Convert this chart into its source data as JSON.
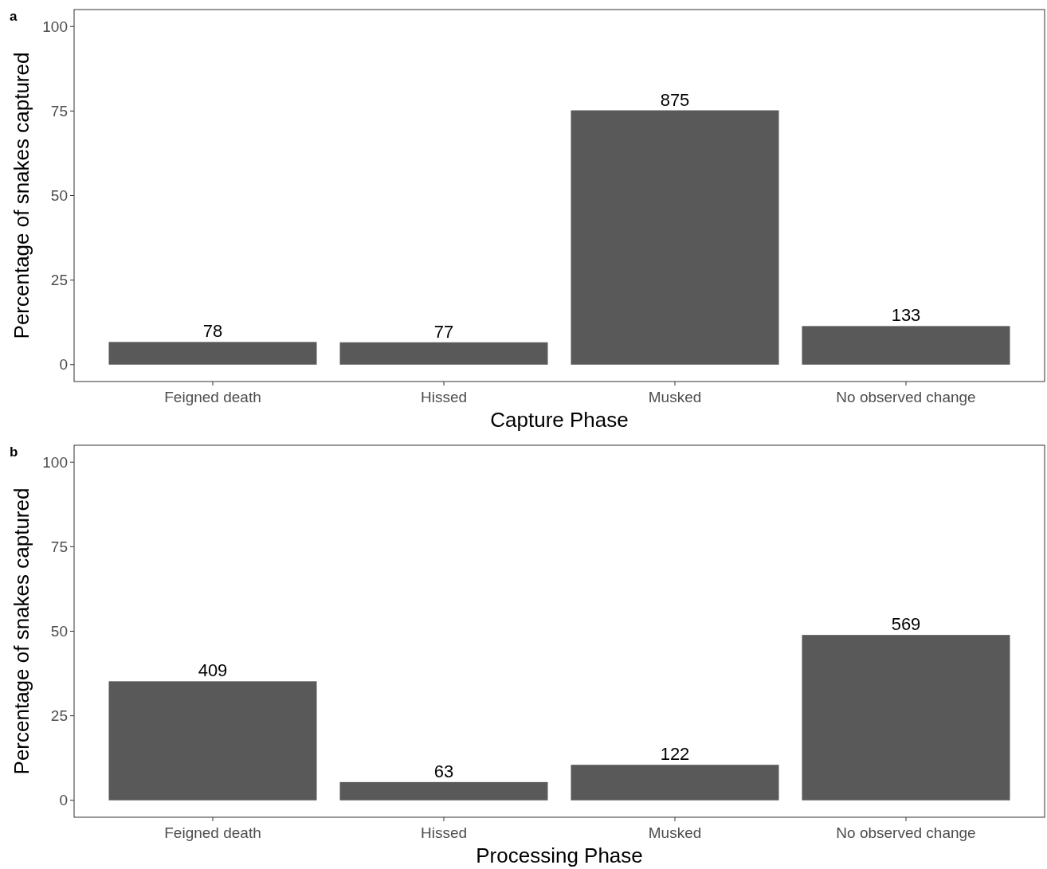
{
  "chart_data": [
    {
      "type": "bar",
      "title": "a",
      "xlabel": "Capture Phase",
      "ylabel": "Percentage of snakes captured",
      "categories": [
        "Feigned death",
        "Hissed",
        "Musked",
        "No observed change"
      ],
      "values": [
        6.7,
        6.6,
        75.2,
        11.4
      ],
      "color": "#595959",
      "ylim": [
        -5,
        105
      ],
      "yticks": [
        0,
        25,
        50,
        75,
        100
      ],
      "grid": false,
      "annotations": [
        {
          "text": "78",
          "x": "Feigned death",
          "y": 6.7
        },
        {
          "text": "77",
          "x": "Hissed",
          "y": 6.6
        },
        {
          "text": "875",
          "x": "Musked",
          "y": 75.2
        },
        {
          "text": "133",
          "x": "No observed change",
          "y": 11.4
        }
      ]
    },
    {
      "type": "bar",
      "title": "b",
      "xlabel": "Processing Phase",
      "ylabel": "Percentage of snakes captured",
      "categories": [
        "Feigned death",
        "Hissed",
        "Musked",
        "No observed change"
      ],
      "values": [
        35.2,
        5.4,
        10.5,
        48.9
      ],
      "color": "#595959",
      "ylim": [
        -5,
        105
      ],
      "yticks": [
        0,
        25,
        50,
        75,
        100
      ],
      "grid": false,
      "annotations": [
        {
          "text": "409",
          "x": "Feigned death",
          "y": 35.2
        },
        {
          "text": "63",
          "x": "Hissed",
          "y": 5.4
        },
        {
          "text": "122",
          "x": "Musked",
          "y": 10.5
        },
        {
          "text": "569",
          "x": "No observed change",
          "y": 48.9
        }
      ]
    }
  ]
}
